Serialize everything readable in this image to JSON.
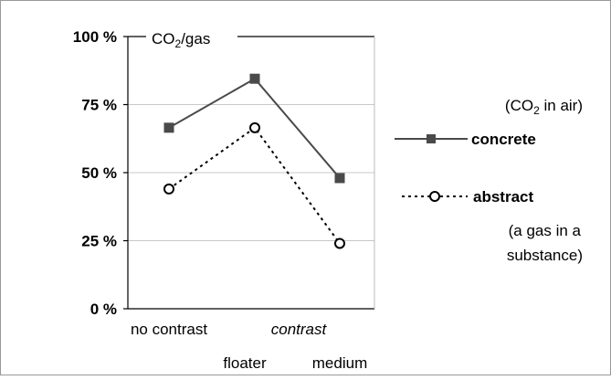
{
  "chart_data": {
    "type": "line",
    "title": "CO2/gas",
    "ylim": [
      0,
      100
    ],
    "yticks": [
      {
        "value": 0,
        "label": "0 %"
      },
      {
        "value": 25,
        "label": "25 %"
      },
      {
        "value": 50,
        "label": "50 %"
      },
      {
        "value": 75,
        "label": "75 %"
      },
      {
        "value": 100,
        "label": "100 %"
      }
    ],
    "categories": [
      "no contrast",
      "floater",
      "medium"
    ],
    "category_group_label": "contrast",
    "grid": true,
    "legend_position": "right",
    "series": [
      {
        "name": "concrete",
        "note": "(CO2 in air)",
        "values": [
          66.5,
          84.5,
          48
        ],
        "color": "#4a4a4a",
        "marker": "square",
        "line": "solid"
      },
      {
        "name": "abstract",
        "note": "(a gas in a substance)",
        "values": [
          44,
          66.5,
          24
        ],
        "color": "#000000",
        "marker": "circle",
        "line": "dotted"
      }
    ]
  }
}
